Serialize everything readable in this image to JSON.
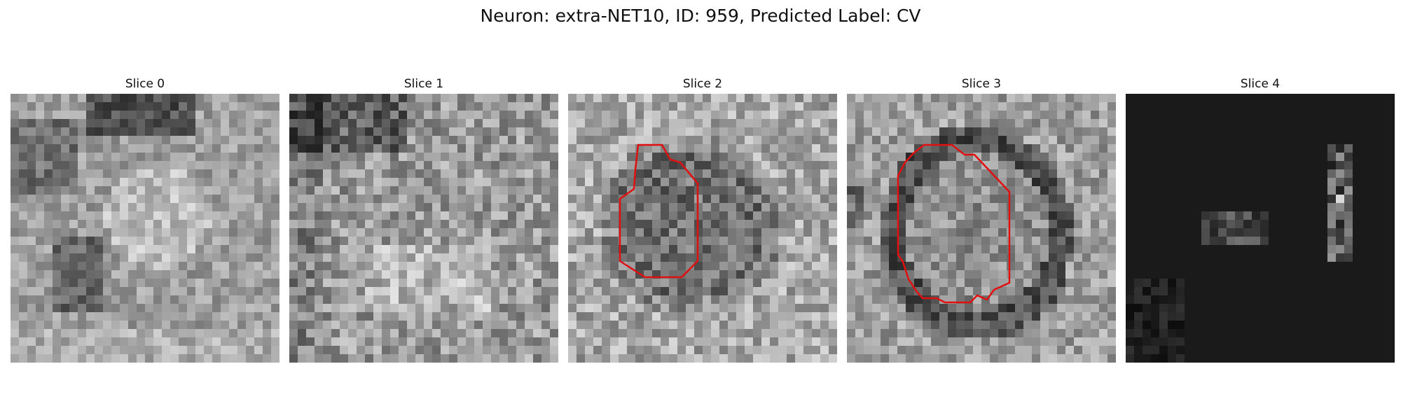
{
  "figure": {
    "title": "Neuron: extra-NET10, ID: 959, Predicted Label: CV"
  },
  "panels": [
    {
      "title": "Slice 0",
      "content": "grayscale-texture",
      "has_contour": false
    },
    {
      "title": "Slice 1",
      "content": "grayscale-texture",
      "has_contour": false
    },
    {
      "title": "Slice 2",
      "content": "grayscale-texture-cell",
      "has_contour": true
    },
    {
      "title": "Slice 3",
      "content": "grayscale-texture-cell",
      "has_contour": true
    },
    {
      "title": "Slice 4",
      "content": "dark-sparse",
      "has_contour": false
    }
  ],
  "colors": {
    "contour": "#e01010",
    "background": "#ffffff",
    "dark_fill": "#1c1c1c"
  }
}
